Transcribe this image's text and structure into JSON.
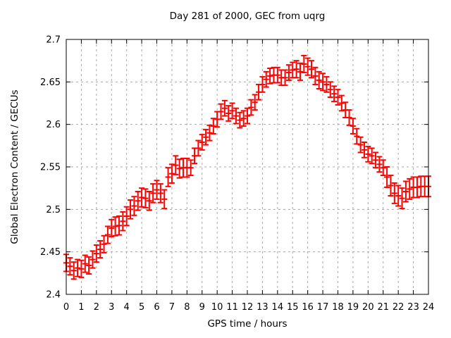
{
  "chart_data": {
    "type": "scatter",
    "style": "errorbars",
    "title": "Day 281 of 2000, GEC from uqrg",
    "xlabel": "GPS time / hours",
    "ylabel": "Global Electron Content / GECUs",
    "xlim": [
      0,
      24
    ],
    "ylim": [
      2.4,
      2.7
    ],
    "grid": true,
    "legend": "none",
    "x_tick_labels": [
      "0",
      "1",
      "2",
      "3",
      "4",
      "5",
      "6",
      "7",
      "8",
      "9",
      "10",
      "11",
      "12",
      "13",
      "14",
      "15",
      "16",
      "17",
      "18",
      "19",
      "20",
      "21",
      "22",
      "23",
      "24"
    ],
    "x_tick_values": [
      0,
      1,
      2,
      3,
      4,
      5,
      6,
      7,
      8,
      9,
      10,
      11,
      12,
      13,
      14,
      15,
      16,
      17,
      18,
      19,
      20,
      21,
      22,
      23,
      24
    ],
    "y_tick_labels": [
      "2.4",
      "2.45",
      "2.5",
      "2.55",
      "2.6",
      "2.65",
      "2.7"
    ],
    "y_tick_values": [
      2.4,
      2.45,
      2.5,
      2.55,
      2.6,
      2.65,
      2.7
    ],
    "series_color": "#ff0000",
    "grid_color": "#a8a8a8",
    "frame_color": "#000000",
    "x_start_hours": 0,
    "x_step_hours": 0.25,
    "point_count": 97,
    "values": [
      2.437,
      2.433,
      2.428,
      2.431,
      2.43,
      2.436,
      2.434,
      2.441,
      2.448,
      2.453,
      2.459,
      2.47,
      2.478,
      2.48,
      2.481,
      2.486,
      2.492,
      2.5,
      2.504,
      2.51,
      2.514,
      2.513,
      2.51,
      2.519,
      2.523,
      2.519,
      2.512,
      2.538,
      2.542,
      2.552,
      2.548,
      2.549,
      2.549,
      2.549,
      2.563,
      2.572,
      2.579,
      2.585,
      2.59,
      2.598,
      2.606,
      2.615,
      2.619,
      2.613,
      2.616,
      2.61,
      2.605,
      2.607,
      2.61,
      2.62,
      2.626,
      2.638,
      2.647,
      2.653,
      2.657,
      2.658,
      2.658,
      2.655,
      2.655,
      2.661,
      2.664,
      2.665,
      2.662,
      2.671,
      2.668,
      2.665,
      2.657,
      2.652,
      2.65,
      2.647,
      2.641,
      2.636,
      2.632,
      2.625,
      2.617,
      2.608,
      2.598,
      2.586,
      2.576,
      2.57,
      2.565,
      2.563,
      2.558,
      2.553,
      2.549,
      2.538,
      2.528,
      2.519,
      2.516,
      2.513,
      2.521,
      2.524,
      2.526,
      2.526,
      2.527,
      2.527,
      2.527
    ],
    "yerr": [
      0.01,
      0.01,
      0.01,
      0.01,
      0.01,
      0.01,
      0.01,
      0.01,
      0.01,
      0.01,
      0.01,
      0.01,
      0.01,
      0.011,
      0.011,
      0.011,
      0.011,
      0.011,
      0.011,
      0.011,
      0.011,
      0.011,
      0.011,
      0.011,
      0.011,
      0.011,
      0.011,
      0.011,
      0.011,
      0.011,
      0.011,
      0.011,
      0.011,
      0.009,
      0.009,
      0.009,
      0.009,
      0.009,
      0.009,
      0.009,
      0.009,
      0.009,
      0.009,
      0.009,
      0.009,
      0.009,
      0.009,
      0.009,
      0.009,
      0.009,
      0.009,
      0.009,
      0.009,
      0.009,
      0.009,
      0.009,
      0.009,
      0.009,
      0.009,
      0.009,
      0.009,
      0.01,
      0.01,
      0.01,
      0.01,
      0.01,
      0.01,
      0.01,
      0.01,
      0.009,
      0.009,
      0.009,
      0.009,
      0.009,
      0.009,
      0.009,
      0.009,
      0.009,
      0.009,
      0.009,
      0.009,
      0.009,
      0.009,
      0.009,
      0.009,
      0.012,
      0.012,
      0.012,
      0.012,
      0.012,
      0.012,
      0.012,
      0.012,
      0.012,
      0.012,
      0.012,
      0.012
    ]
  }
}
